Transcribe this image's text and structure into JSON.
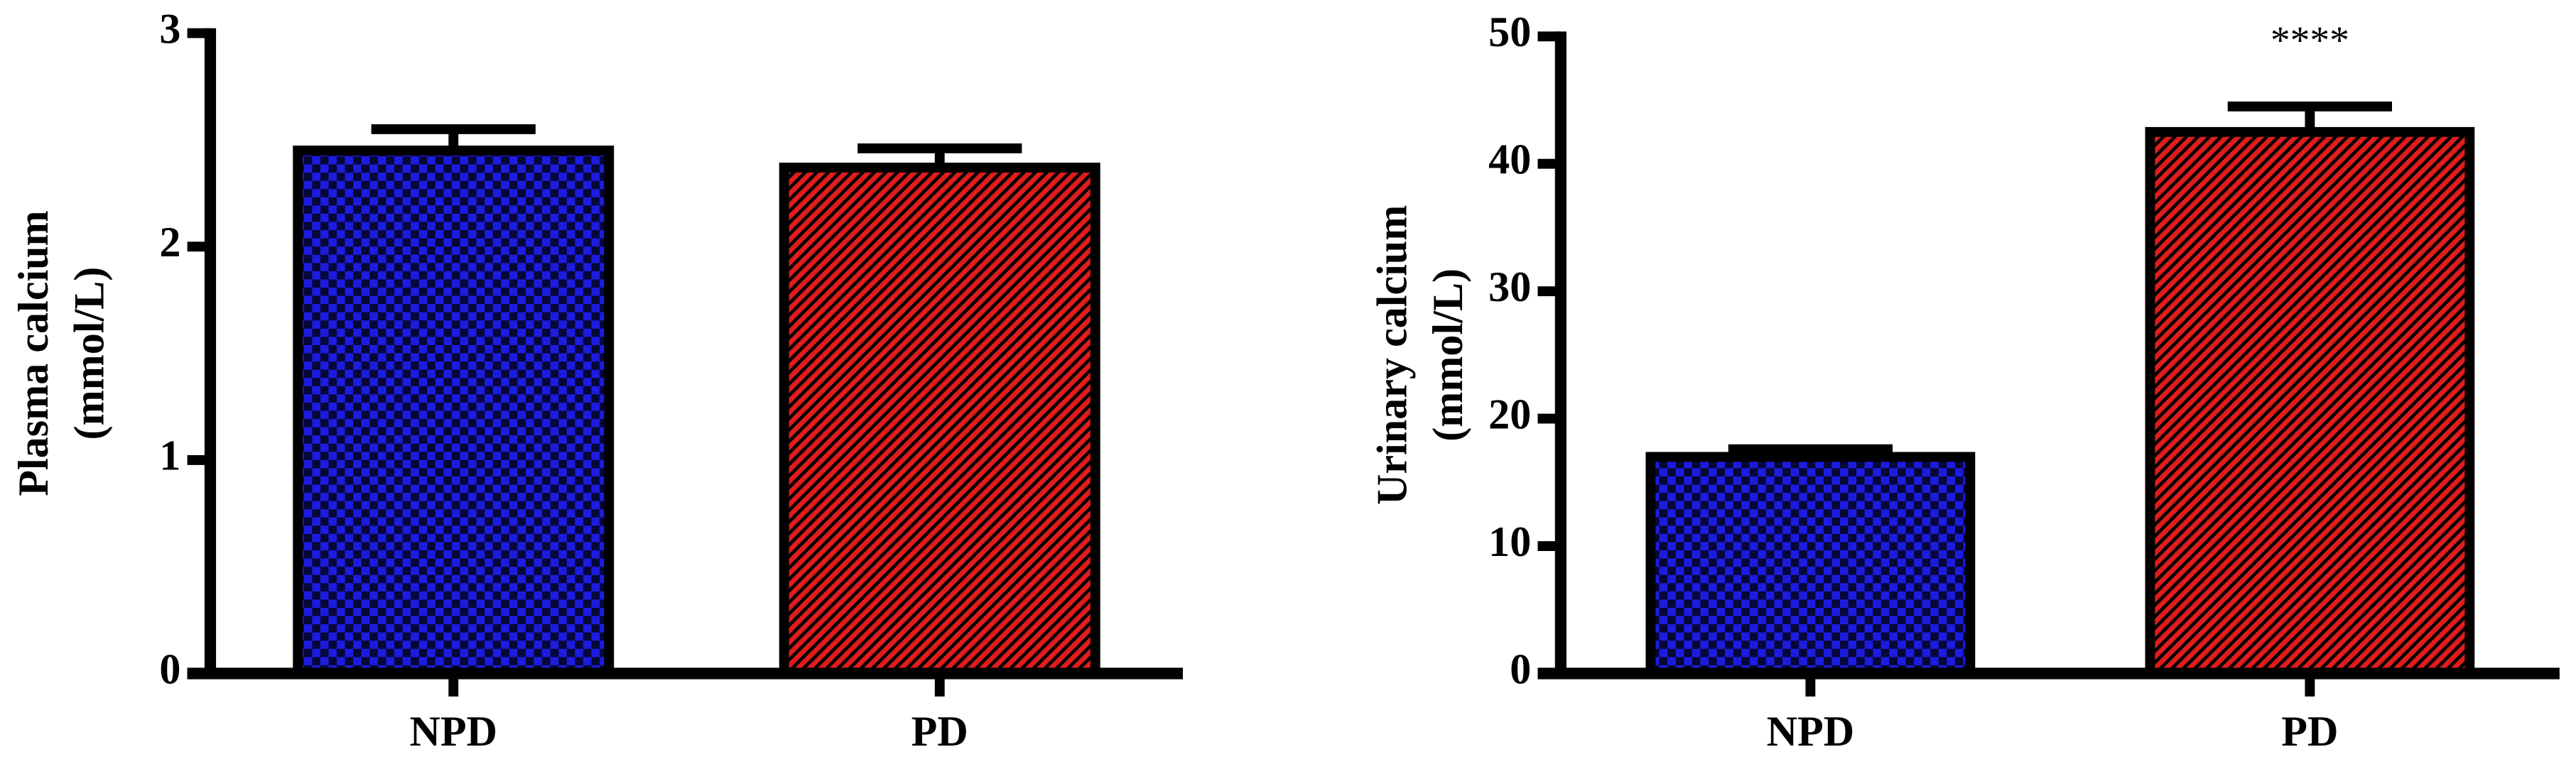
{
  "chart_data": [
    {
      "type": "bar",
      "ylabel": [
        "Plasma calcium",
        "(mmol/L)"
      ],
      "categories": [
        "NPD",
        "PD"
      ],
      "values": [
        2.45,
        2.37
      ],
      "errors": [
        0.1,
        0.09
      ],
      "colors": [
        "#1c1ce0",
        "#e01c1c"
      ],
      "patterns": [
        "checker",
        "hatch"
      ],
      "ylim": [
        0,
        3
      ],
      "yticks": [
        0,
        1,
        2,
        3
      ]
    },
    {
      "type": "bar",
      "ylabel": [
        "Urinary calcium",
        "(mmol/L)"
      ],
      "categories": [
        "NPD",
        "PD"
      ],
      "values": [
        17,
        42.5
      ],
      "errors": [
        0.6,
        2
      ],
      "colors": [
        "#1c1ce0",
        "#e01c1c"
      ],
      "patterns": [
        "checker",
        "hatch"
      ],
      "ylim": [
        0,
        50
      ],
      "yticks": [
        0,
        10,
        20,
        30,
        40,
        50
      ],
      "annotations": [
        {
          "text": "****",
          "category": "PD"
        }
      ]
    }
  ]
}
